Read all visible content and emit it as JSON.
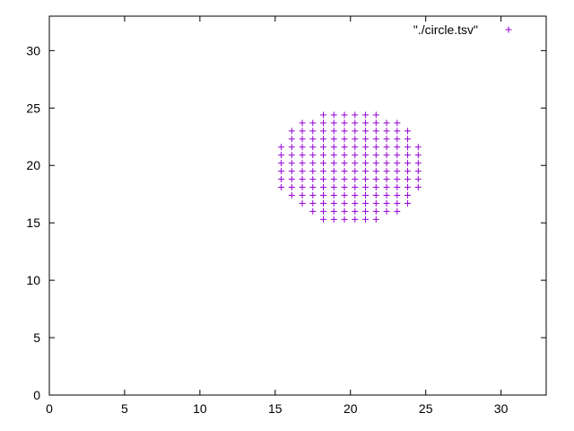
{
  "chart_data": {
    "type": "scatter",
    "title": "",
    "xlabel": "",
    "ylabel": "",
    "xlim": [
      0,
      33
    ],
    "ylim": [
      0,
      33
    ],
    "xticks": [
      0,
      5,
      10,
      15,
      20,
      25,
      30
    ],
    "yticks": [
      0,
      5,
      10,
      15,
      20,
      25,
      30
    ],
    "grid": false,
    "legend": {
      "placement": "top-right"
    },
    "series": [
      {
        "name": "\"./circle.tsv\"",
        "color": "#9400d3",
        "marker": "plus",
        "rows": [
          {
            "y": 24.4,
            "x": [
              18.2,
              18.9,
              19.6,
              20.3,
              21.0,
              21.7
            ]
          },
          {
            "y": 23.7,
            "x": [
              16.8,
              17.5,
              18.2,
              18.9,
              19.6,
              20.3,
              21.0,
              21.7,
              22.4,
              23.1
            ]
          },
          {
            "y": 23.0,
            "x": [
              16.1,
              16.8,
              17.5,
              18.2,
              18.9,
              19.6,
              20.3,
              21.0,
              21.7,
              22.4,
              23.1,
              23.8
            ]
          },
          {
            "y": 22.3,
            "x": [
              16.1,
              16.8,
              17.5,
              18.2,
              18.9,
              19.6,
              20.3,
              21.0,
              21.7,
              22.4,
              23.1,
              23.8
            ]
          },
          {
            "y": 21.6,
            "x": [
              15.4,
              16.1,
              16.8,
              17.5,
              18.2,
              18.9,
              19.6,
              20.3,
              21.0,
              21.7,
              22.4,
              23.1,
              23.8,
              24.5
            ]
          },
          {
            "y": 20.9,
            "x": [
              15.4,
              16.1,
              16.8,
              17.5,
              18.2,
              18.9,
              19.6,
              20.3,
              21.0,
              21.7,
              22.4,
              23.1,
              23.8,
              24.5
            ]
          },
          {
            "y": 20.2,
            "x": [
              15.4,
              16.1,
              16.8,
              17.5,
              18.2,
              18.9,
              19.6,
              20.3,
              21.0,
              21.7,
              22.4,
              23.1,
              23.8,
              24.5
            ]
          },
          {
            "y": 19.5,
            "x": [
              15.4,
              16.1,
              16.8,
              17.5,
              18.2,
              18.9,
              19.6,
              20.3,
              21.0,
              21.7,
              22.4,
              23.1,
              23.8,
              24.5
            ]
          },
          {
            "y": 18.8,
            "x": [
              15.4,
              16.1,
              16.8,
              17.5,
              18.2,
              18.9,
              19.6,
              20.3,
              21.0,
              21.7,
              22.4,
              23.1,
              23.8,
              24.5
            ]
          },
          {
            "y": 18.1,
            "x": [
              15.4,
              16.1,
              16.8,
              17.5,
              18.2,
              18.9,
              19.6,
              20.3,
              21.0,
              21.7,
              22.4,
              23.1,
              23.8,
              24.5
            ]
          },
          {
            "y": 17.4,
            "x": [
              16.1,
              16.8,
              17.5,
              18.2,
              18.9,
              19.6,
              20.3,
              21.0,
              21.7,
              22.4,
              23.1,
              23.8
            ]
          },
          {
            "y": 16.7,
            "x": [
              16.8,
              17.5,
              18.2,
              18.9,
              19.6,
              20.3,
              21.0,
              21.7,
              22.4,
              23.1,
              23.8
            ]
          },
          {
            "y": 16.0,
            "x": [
              17.5,
              18.2,
              18.9,
              19.6,
              20.3,
              21.0,
              21.7,
              22.4,
              23.1
            ]
          },
          {
            "y": 15.3,
            "x": [
              18.2,
              18.9,
              19.6,
              20.3,
              21.0,
              21.7
            ]
          }
        ]
      }
    ]
  }
}
